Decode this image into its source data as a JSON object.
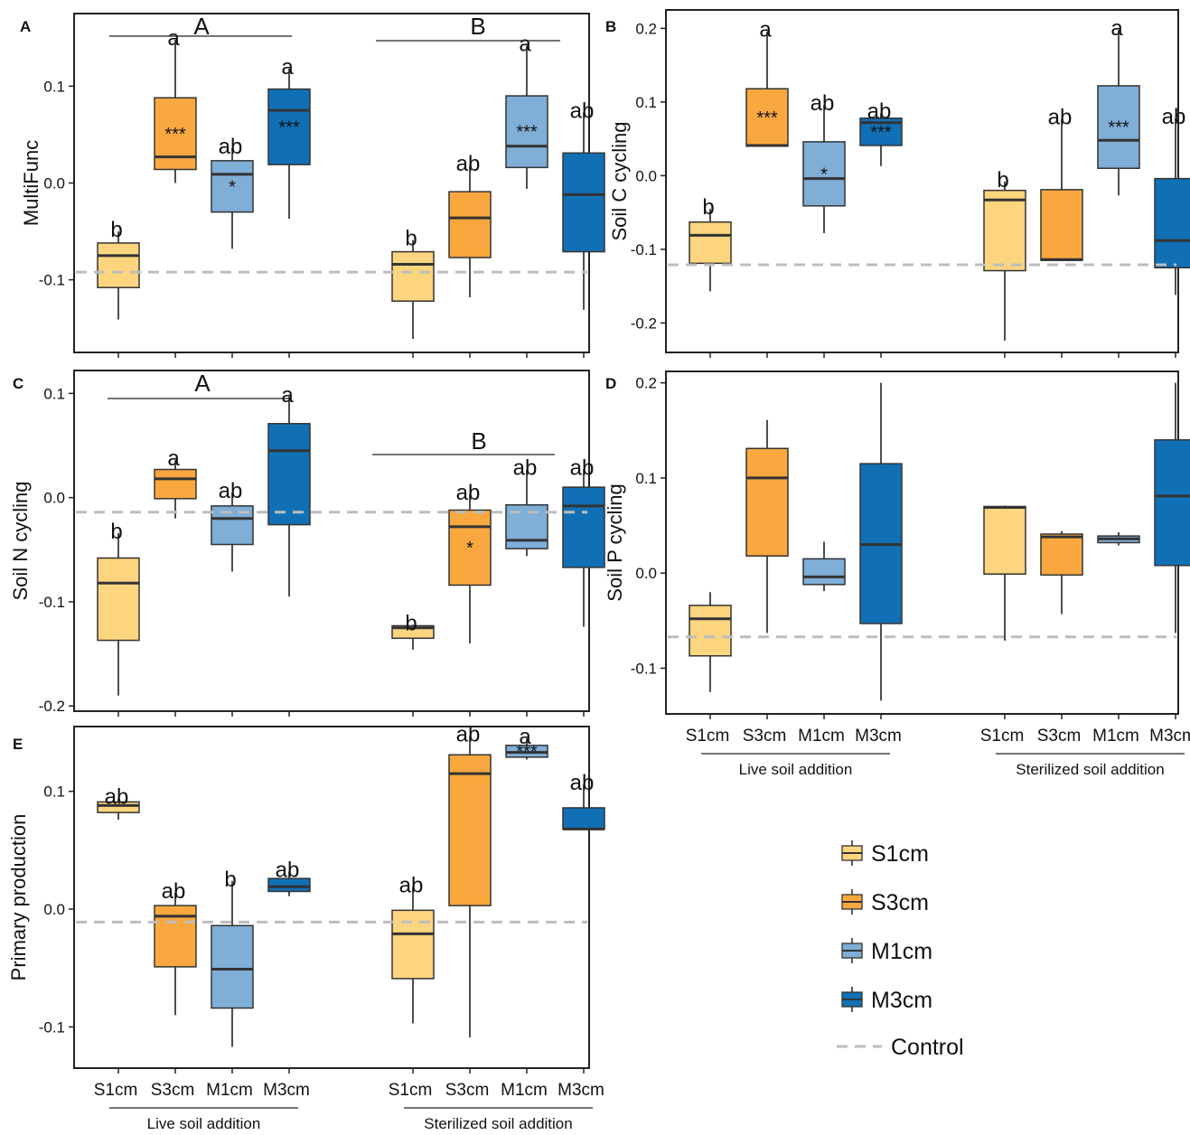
{
  "colors": {
    "S1cm": "#FDD57E",
    "S3cm": "#F9A83F",
    "M1cm": "#7FAED7",
    "M3cm": "#1170B5",
    "control": "#BDBDBD",
    "outline": "#333333"
  },
  "legend": {
    "items": [
      {
        "key": "S1cm",
        "label": "S1cm"
      },
      {
        "key": "S3cm",
        "label": "S3cm"
      },
      {
        "key": "M1cm",
        "label": "M1cm"
      },
      {
        "key": "M3cm",
        "label": "M3cm"
      }
    ],
    "control_label": "Control"
  },
  "x_axis": {
    "categories": [
      "S1cm",
      "S3cm",
      "M1cm",
      "M3cm",
      "S1cm",
      "S3cm",
      "M1cm",
      "M3cm"
    ],
    "groups": [
      "Live soil addition",
      "Sterilized soil addition"
    ]
  },
  "chart_data": [
    {
      "panel": "A",
      "type": "box",
      "ylabel": "MultiFunc",
      "ylim": [
        -0.175,
        0.175
      ],
      "yticks": [
        -0.1,
        0.0,
        0.1
      ],
      "yticklabels": [
        "-0.1",
        "0.0",
        "0.1"
      ],
      "control": -0.092,
      "boxes": [
        {
          "cat": "S1cm",
          "min": -0.141,
          "q1": -0.108,
          "median": -0.075,
          "q3": -0.062,
          "max": -0.05,
          "letter": "b",
          "sig": ""
        },
        {
          "cat": "S3cm",
          "min": 0.0,
          "q1": 0.014,
          "median": 0.027,
          "q3": 0.088,
          "max": 0.148,
          "letter": "a",
          "sig": "***"
        },
        {
          "cat": "M1cm",
          "min": -0.068,
          "q1": -0.03,
          "median": 0.009,
          "q3": 0.023,
          "max": 0.036,
          "letter": "ab",
          "sig": "*"
        },
        {
          "cat": "M3cm",
          "min": -0.037,
          "q1": 0.019,
          "median": 0.075,
          "q3": 0.097,
          "max": 0.118,
          "letter": "a",
          "sig": "***"
        },
        {
          "cat": "S1cm",
          "min": -0.161,
          "q1": -0.122,
          "median": -0.084,
          "q3": -0.071,
          "max": -0.059,
          "letter": "b",
          "sig": ""
        },
        {
          "cat": "S3cm",
          "min": -0.118,
          "q1": -0.077,
          "median": -0.036,
          "q3": -0.009,
          "max": 0.018,
          "letter": "ab",
          "sig": ""
        },
        {
          "cat": "M1cm",
          "min": -0.006,
          "q1": 0.016,
          "median": 0.038,
          "q3": 0.09,
          "max": 0.142,
          "letter": "a",
          "sig": "***"
        },
        {
          "cat": "M3cm",
          "min": -0.131,
          "q1": -0.071,
          "median": -0.012,
          "q3": 0.031,
          "max": 0.073,
          "letter": "ab",
          "sig": ""
        }
      ],
      "group_letters": [
        "A",
        "B"
      ]
    },
    {
      "panel": "B",
      "type": "box",
      "ylabel": "Soil C cycling",
      "ylim": [
        -0.24,
        0.225
      ],
      "yticks": [
        -0.2,
        -0.1,
        0.0,
        0.1,
        0.2
      ],
      "yticklabels": [
        "-0.2",
        "-0.1",
        "0.0",
        "0.1",
        "0.2"
      ],
      "control": -0.121,
      "boxes": [
        {
          "cat": "S1cm",
          "min": -0.157,
          "q1": -0.119,
          "median": -0.081,
          "q3": -0.063,
          "max": -0.045,
          "letter": "b",
          "sig": ""
        },
        {
          "cat": "S3cm",
          "min": 0.04,
          "q1": 0.04,
          "median": 0.041,
          "q3": 0.118,
          "max": 0.196,
          "letter": "a",
          "sig": "***"
        },
        {
          "cat": "M1cm",
          "min": -0.078,
          "q1": -0.041,
          "median": -0.004,
          "q3": 0.046,
          "max": 0.096,
          "letter": "ab",
          "sig": "*"
        },
        {
          "cat": "M3cm",
          "min": 0.013,
          "q1": 0.041,
          "median": 0.072,
          "q3": 0.078,
          "max": 0.085,
          "letter": "ab",
          "sig": "***"
        },
        {
          "cat": "S1cm",
          "min": -0.224,
          "q1": -0.129,
          "median": -0.033,
          "q3": -0.02,
          "max": -0.008,
          "letter": "b",
          "sig": ""
        },
        {
          "cat": "S3cm",
          "min": -0.115,
          "q1": -0.115,
          "median": -0.114,
          "q3": -0.019,
          "max": 0.077,
          "letter": "ab",
          "sig": ""
        },
        {
          "cat": "M1cm",
          "min": -0.027,
          "q1": 0.01,
          "median": 0.048,
          "q3": 0.122,
          "max": 0.198,
          "letter": "a",
          "sig": "***"
        },
        {
          "cat": "M3cm",
          "min": -0.162,
          "q1": -0.125,
          "median": -0.088,
          "q3": -0.004,
          "max": 0.078,
          "letter": "ab",
          "sig": ""
        }
      ]
    },
    {
      "panel": "C",
      "type": "box",
      "ylabel": "Soil N cycling",
      "ylim": [
        -0.205,
        0.122
      ],
      "yticks": [
        -0.2,
        -0.1,
        0.0,
        0.1
      ],
      "yticklabels": [
        "-0.2",
        "-0.1",
        "0.0",
        "0.1"
      ],
      "control": -0.014,
      "boxes": [
        {
          "cat": "S1cm",
          "min": -0.19,
          "q1": -0.137,
          "median": -0.082,
          "q3": -0.058,
          "max": -0.034,
          "letter": "b",
          "sig": ""
        },
        {
          "cat": "S3cm",
          "min": -0.02,
          "q1": -0.001,
          "median": 0.018,
          "q3": 0.027,
          "max": 0.036,
          "letter": "a",
          "sig": ""
        },
        {
          "cat": "M1cm",
          "min": -0.071,
          "q1": -0.045,
          "median": -0.02,
          "q3": -0.008,
          "max": 0.005,
          "letter": "ab",
          "sig": ""
        },
        {
          "cat": "M3cm",
          "min": -0.095,
          "q1": -0.026,
          "median": 0.045,
          "q3": 0.071,
          "max": 0.097,
          "letter": "a",
          "sig": ""
        },
        {
          "cat": "S1cm",
          "min": -0.146,
          "q1": -0.135,
          "median": -0.125,
          "q3": -0.123,
          "max": -0.122,
          "letter": "b",
          "sig": ""
        },
        {
          "cat": "S3cm",
          "min": -0.14,
          "q1": -0.084,
          "median": -0.028,
          "q3": -0.012,
          "max": 0.003,
          "letter": "ab",
          "sig": "*"
        },
        {
          "cat": "M1cm",
          "min": -0.056,
          "q1": -0.049,
          "median": -0.041,
          "q3": -0.007,
          "max": 0.027,
          "letter": "ab",
          "sig": ""
        },
        {
          "cat": "M3cm",
          "min": -0.124,
          "q1": -0.067,
          "median": -0.008,
          "q3": 0.01,
          "max": 0.027,
          "letter": "ab",
          "sig": ""
        }
      ],
      "group_letters": [
        "A",
        "B"
      ]
    },
    {
      "panel": "D",
      "type": "box",
      "ylabel": "Soil P cycling",
      "ylim": [
        -0.148,
        0.212
      ],
      "yticks": [
        -0.1,
        0.0,
        0.1,
        0.2
      ],
      "yticklabels": [
        "-0.1",
        "0.0",
        "0.1",
        "0.2"
      ],
      "control": -0.067,
      "boxes": [
        {
          "cat": "S1cm",
          "min": -0.125,
          "q1": -0.087,
          "median": -0.048,
          "q3": -0.034,
          "max": -0.02,
          "letter": "",
          "sig": ""
        },
        {
          "cat": "S3cm",
          "min": -0.063,
          "q1": 0.018,
          "median": 0.1,
          "q3": 0.131,
          "max": 0.161,
          "letter": "",
          "sig": ""
        },
        {
          "cat": "M1cm",
          "min": -0.019,
          "q1": -0.012,
          "median": -0.004,
          "q3": 0.015,
          "max": 0.033,
          "letter": "",
          "sig": ""
        },
        {
          "cat": "M3cm",
          "min": -0.134,
          "q1": -0.053,
          "median": 0.03,
          "q3": 0.115,
          "max": 0.2,
          "letter": "",
          "sig": ""
        },
        {
          "cat": "S1cm",
          "min": -0.071,
          "q1": -0.001,
          "median": 0.069,
          "q3": 0.07,
          "max": 0.071,
          "letter": "",
          "sig": ""
        },
        {
          "cat": "S3cm",
          "min": -0.043,
          "q1": -0.002,
          "median": 0.038,
          "q3": 0.041,
          "max": 0.044,
          "letter": "",
          "sig": ""
        },
        {
          "cat": "M1cm",
          "min": 0.029,
          "q1": 0.032,
          "median": 0.036,
          "q3": 0.039,
          "max": 0.043,
          "letter": "",
          "sig": ""
        },
        {
          "cat": "M3cm",
          "min": -0.063,
          "q1": 0.008,
          "median": 0.081,
          "q3": 0.14,
          "max": 0.2,
          "letter": "",
          "sig": ""
        }
      ]
    },
    {
      "panel": "E",
      "type": "box",
      "ylabel": "Primary production",
      "ylim": [
        -0.135,
        0.155
      ],
      "yticks": [
        -0.1,
        0.0,
        0.1
      ],
      "yticklabels": [
        "-0.1",
        "0.0",
        "0.1"
      ],
      "control": -0.011,
      "boxes": [
        {
          "cat": "S1cm",
          "min": 0.076,
          "q1": 0.082,
          "median": 0.088,
          "q3": 0.091,
          "max": 0.094,
          "letter": "ab",
          "sig": ""
        },
        {
          "cat": "S3cm",
          "min": -0.09,
          "q1": -0.049,
          "median": -0.006,
          "q3": 0.003,
          "max": 0.014,
          "letter": "ab",
          "sig": ""
        },
        {
          "cat": "M1cm",
          "min": -0.117,
          "q1": -0.084,
          "median": -0.051,
          "q3": -0.014,
          "max": 0.024,
          "letter": "b",
          "sig": ""
        },
        {
          "cat": "M3cm",
          "min": 0.011,
          "q1": 0.015,
          "median": 0.019,
          "q3": 0.026,
          "max": 0.032,
          "letter": "ab",
          "sig": ""
        },
        {
          "cat": "S1cm",
          "min": -0.097,
          "q1": -0.059,
          "median": -0.021,
          "q3": -0.001,
          "max": 0.019,
          "letter": "ab",
          "sig": ""
        },
        {
          "cat": "S3cm",
          "min": -0.109,
          "q1": 0.003,
          "median": 0.115,
          "q3": 0.131,
          "max": 0.147,
          "letter": "ab",
          "sig": ""
        },
        {
          "cat": "M1cm",
          "min": 0.127,
          "q1": 0.129,
          "median": 0.133,
          "q3": 0.139,
          "max": 0.145,
          "letter": "a",
          "sig": "***"
        },
        {
          "cat": "M3cm",
          "min": 0.067,
          "q1": 0.068,
          "median": 0.068,
          "q3": 0.086,
          "max": 0.106,
          "letter": "ab",
          "sig": ""
        }
      ]
    }
  ]
}
